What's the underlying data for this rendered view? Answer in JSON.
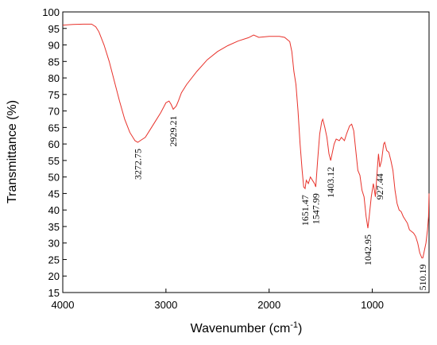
{
  "chart_data": {
    "type": "line",
    "xlabel": "Wavenumber (cm",
    "xlabel_sup": "-1",
    "xlabel_end": ")",
    "ylabel": "Transmittance (%)",
    "color": "#e8322b",
    "xlim": [
      4000,
      450
    ],
    "xticks": [
      4000,
      3000,
      2000,
      1000
    ],
    "ylim": [
      15,
      100
    ],
    "yticks": [
      15,
      20,
      25,
      30,
      35,
      40,
      45,
      50,
      55,
      60,
      65,
      70,
      75,
      80,
      85,
      90,
      95,
      100
    ],
    "x": [
      4000,
      3900,
      3800,
      3720,
      3680,
      3650,
      3600,
      3550,
      3500,
      3450,
      3400,
      3350,
      3300,
      3272.75,
      3240,
      3200,
      3150,
      3100,
      3050,
      3000,
      2970,
      2950,
      2929.21,
      2900,
      2880,
      2850,
      2800,
      2700,
      2600,
      2500,
      2400,
      2300,
      2200,
      2150,
      2100,
      2000,
      1900,
      1850,
      1800,
      1780,
      1760,
      1740,
      1720,
      1700,
      1680,
      1665,
      1651.47,
      1640,
      1620,
      1600,
      1580,
      1560,
      1547.99,
      1530,
      1510,
      1490,
      1480,
      1460,
      1440,
      1420,
      1403.12,
      1390,
      1370,
      1350,
      1320,
      1300,
      1270,
      1250,
      1220,
      1200,
      1180,
      1160,
      1140,
      1120,
      1100,
      1080,
      1060,
      1042.95,
      1030,
      1010,
      990,
      970,
      950,
      940,
      927.44,
      910,
      890,
      880,
      860,
      840,
      820,
      800,
      780,
      760,
      740,
      720,
      700,
      680,
      660,
      640,
      620,
      600,
      580,
      560,
      540,
      520,
      510.19,
      500,
      480,
      465,
      455,
      450
    ],
    "values": [
      96,
      96.2,
      96.3,
      96.3,
      95.5,
      94,
      90,
      85,
      79,
      73,
      67.5,
      63.5,
      61,
      60.5,
      61.2,
      62,
      64.5,
      67,
      69.5,
      72.5,
      73,
      72,
      70.5,
      71.5,
      73,
      75.5,
      78,
      82,
      85.5,
      88,
      89.8,
      91.2,
      92.2,
      93,
      92.3,
      92.6,
      92.6,
      92.3,
      91,
      88,
      82,
      78,
      70,
      60,
      52,
      47,
      46.5,
      49,
      48,
      50,
      49,
      48,
      47,
      55,
      63,
      66.8,
      67.5,
      65,
      62,
      57,
      55,
      57,
      60,
      61.5,
      61,
      62,
      61,
      63,
      65.5,
      66,
      64,
      58,
      52,
      50.5,
      46,
      44,
      38,
      34.5,
      38,
      44,
      48,
      44,
      53,
      57,
      53,
      55,
      60,
      60.5,
      58,
      57.5,
      55,
      52,
      46,
      42,
      40,
      39.5,
      38,
      37,
      36,
      34,
      33.5,
      33,
      32,
      30,
      27,
      25.5,
      25.5,
      27,
      30,
      34,
      38,
      45
    ],
    "annotations": [
      3272.75,
      2929.21,
      1651.47,
      1547.99,
      1403.12,
      1042.95,
      927.44,
      510.19
    ]
  }
}
